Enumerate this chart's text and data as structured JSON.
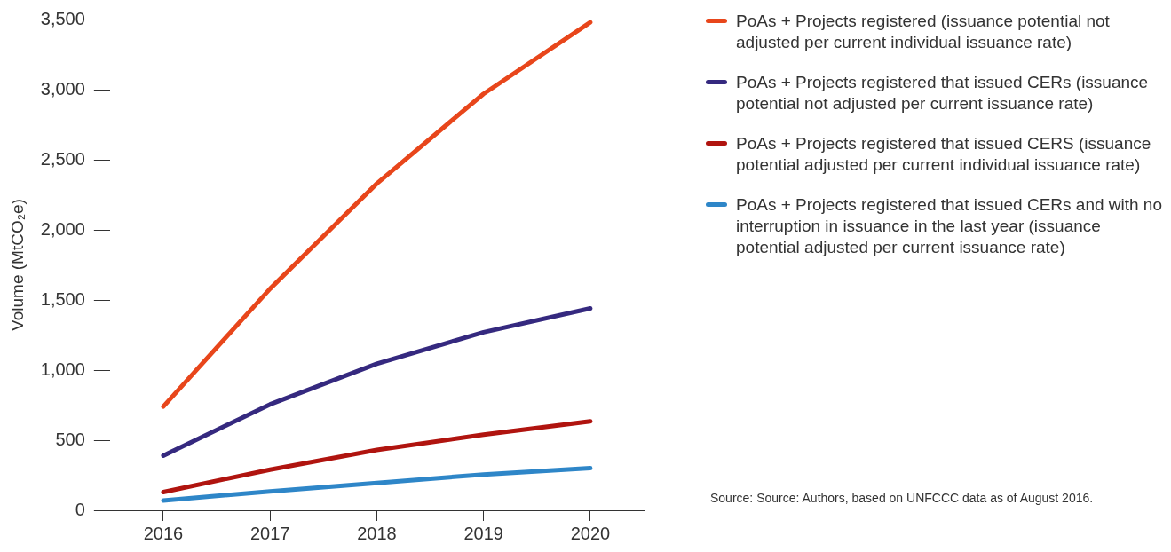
{
  "chart_data": {
    "type": "line",
    "ylabel": "Volume (MtCO₂e)",
    "categories": [
      "2016",
      "2017",
      "2018",
      "2019",
      "2020"
    ],
    "series": [
      {
        "name": "PoAs + Projects registered (issuance potential not adjusted per current individual issuance rate)",
        "color": "#e8461b",
        "values": [
          740,
          1580,
          2330,
          2970,
          3480
        ]
      },
      {
        "name": "PoAs + Projects registered that issued CERs (issuance potential not adjusted per current issuance rate)",
        "color": "#35297f",
        "values": [
          390,
          755,
          1045,
          1270,
          1440
        ]
      },
      {
        "name": "PoAs + Projects registered that issued CERS (issuance potential adjusted per current individual issuance rate)",
        "color": "#b0140f",
        "values": [
          130,
          290,
          430,
          540,
          635
        ]
      },
      {
        "name": "PoAs + Projects registered that issued CERs and with no interruption in issuance in the last year (issuance potential adjusted per current issuance rate)",
        "color": "#2e86c8",
        "values": [
          70,
          135,
          195,
          255,
          300
        ]
      }
    ],
    "ylim": [
      0,
      3500
    ],
    "yticks": [
      0,
      500,
      {
        "value": 1000,
        "label": "1,000"
      },
      {
        "value": 1500,
        "label": "1,500"
      },
      {
        "value": 2000,
        "label": "2,000"
      },
      {
        "value": 2500,
        "label": "2,500"
      },
      {
        "value": 3000,
        "label": "3,000"
      },
      {
        "value": 3500,
        "label": "3,500"
      }
    ],
    "grid": false,
    "legend": "right",
    "marker": "none",
    "line_style": "solid",
    "annotations": [
      "Source: Source: Authors, based on UNFCCC data as of August 2016."
    ]
  }
}
